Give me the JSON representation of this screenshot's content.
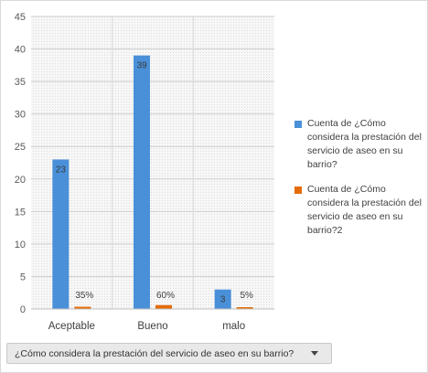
{
  "chart_data": {
    "type": "bar",
    "categories": [
      "Aceptable",
      "Bueno",
      "malo"
    ],
    "series": [
      {
        "name": "Cuenta de ¿Cómo considera la prestación del servicio de aseo en su barrio?",
        "values": [
          23,
          39,
          3
        ],
        "labels": [
          "23",
          "39",
          "3"
        ],
        "color": "#4a90d9"
      },
      {
        "name": "Cuenta de ¿Cómo considera la prestación del servicio de aseo en su barrio?2",
        "values": [
          0.35,
          0.6,
          0.05
        ],
        "labels": [
          "35%",
          "60%",
          "5%"
        ],
        "color": "#e46c0a"
      }
    ],
    "ylim": [
      0,
      45
    ],
    "yticks": [
      0,
      5,
      10,
      15,
      20,
      25,
      30,
      35,
      40,
      45
    ],
    "grid": true,
    "legend_position": "right"
  },
  "filter": {
    "label": "¿Cómo considera la prestación del servicio de aseo en su barrio?"
  }
}
